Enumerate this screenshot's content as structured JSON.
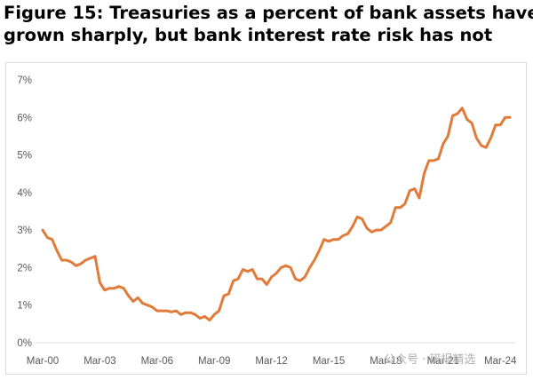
{
  "title_lines": [
    "Figure 15: Treasuries as a percent of bank assets have",
    "grown sharply, but bank interest rate risk has not"
  ],
  "watermark": "公众号 · 研报精选",
  "chart_data": {
    "type": "line",
    "title": "Figure 15: Treasuries as a percent of bank assets have grown sharply, but bank interest rate risk has not",
    "xlabel": "",
    "ylabel": "",
    "y_tick_labels": [
      "0%",
      "1%",
      "2%",
      "3%",
      "4%",
      "5%",
      "6%",
      "7%"
    ],
    "ylim": [
      0,
      7
    ],
    "x_tick_labels": [
      "Mar-00",
      "Mar-03",
      "Mar-06",
      "Mar-09",
      "Mar-12",
      "Mar-15",
      "Mar-18",
      "Mar-21",
      "Mar-24"
    ],
    "x_tick_years": [
      2000.0,
      2003.0,
      2006.0,
      2009.0,
      2012.0,
      2015.0,
      2018.0,
      2021.0,
      2024.0
    ],
    "xlim": [
      2000.0,
      2024.5
    ],
    "grid": false,
    "legend": "none",
    "line_color": "#e07b39",
    "series": [
      {
        "x": [
          2000.0,
          2000.25,
          2000.5,
          2000.75,
          2001.0,
          2001.25,
          2001.5,
          2001.75,
          2002.0,
          2002.25,
          2002.5,
          2002.75,
          2003.0,
          2003.25,
          2003.5,
          2003.75,
          2004.0,
          2004.25,
          2004.5,
          2004.75,
          2005.0,
          2005.25,
          2005.5,
          2005.75,
          2006.0,
          2006.25,
          2006.5,
          2006.75,
          2007.0,
          2007.25,
          2007.5,
          2007.75,
          2008.0,
          2008.25,
          2008.5,
          2008.75,
          2009.0,
          2009.25,
          2009.5,
          2009.75,
          2010.0,
          2010.25,
          2010.5,
          2010.75,
          2011.0,
          2011.25,
          2011.5,
          2011.75,
          2012.0,
          2012.25,
          2012.5,
          2012.75,
          2013.0,
          2013.25,
          2013.5,
          2013.75,
          2014.0,
          2014.25,
          2014.5,
          2014.75,
          2015.0,
          2015.25,
          2015.5,
          2015.75,
          2016.0,
          2016.25,
          2016.5,
          2016.75,
          2017.0,
          2017.25,
          2017.5,
          2017.75,
          2018.0,
          2018.25,
          2018.5,
          2018.75,
          2019.0,
          2019.25,
          2019.5,
          2019.75,
          2020.0,
          2020.25,
          2020.5,
          2020.75,
          2021.0,
          2021.25,
          2021.5,
          2021.75,
          2022.0,
          2022.25,
          2022.5,
          2022.75,
          2023.0,
          2023.25,
          2023.5,
          2023.75,
          2024.0,
          2024.25,
          2024.5
        ],
        "values": [
          3.0,
          2.8,
          2.75,
          2.45,
          2.2,
          2.2,
          2.15,
          2.05,
          2.1,
          2.2,
          2.25,
          2.3,
          1.6,
          1.4,
          1.45,
          1.45,
          1.5,
          1.45,
          1.25,
          1.1,
          1.2,
          1.05,
          1.0,
          0.95,
          0.85,
          0.85,
          0.85,
          0.82,
          0.85,
          0.75,
          0.8,
          0.8,
          0.75,
          0.65,
          0.7,
          0.6,
          0.75,
          0.85,
          1.25,
          1.3,
          1.65,
          1.7,
          1.95,
          1.9,
          1.95,
          1.7,
          1.7,
          1.55,
          1.75,
          1.85,
          2.0,
          2.05,
          2.0,
          1.7,
          1.65,
          1.75,
          2.0,
          2.2,
          2.45,
          2.75,
          2.7,
          2.75,
          2.75,
          2.85,
          2.9,
          3.1,
          3.35,
          3.3,
          3.05,
          2.95,
          3.0,
          3.0,
          3.1,
          3.2,
          3.6,
          3.6,
          3.7,
          4.05,
          4.1,
          3.85,
          4.5,
          4.85,
          4.85,
          4.9,
          5.3,
          5.5,
          6.05,
          6.1,
          6.25,
          5.95,
          5.85,
          5.45,
          5.25,
          5.2,
          5.45,
          5.8,
          5.8,
          6.0,
          6.0
        ]
      }
    ]
  }
}
